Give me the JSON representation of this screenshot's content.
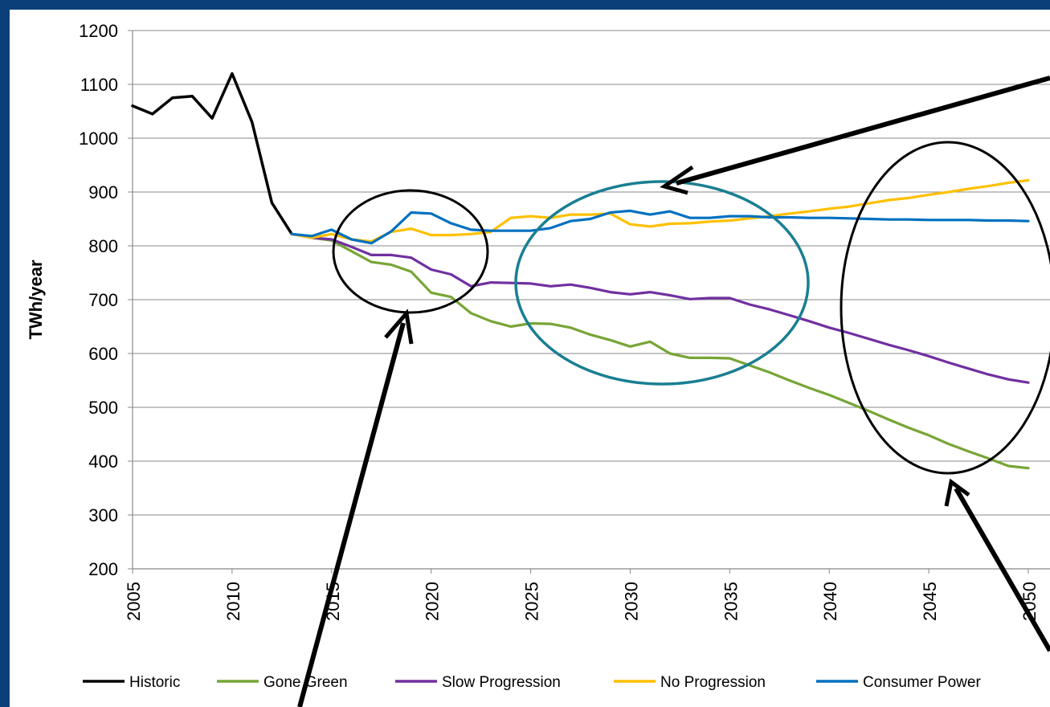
{
  "chart_data": {
    "type": "line",
    "title": "",
    "xlabel": "",
    "ylabel": "TWh/year",
    "ylim": [
      200,
      1200
    ],
    "yticks": [
      200,
      300,
      400,
      500,
      600,
      700,
      800,
      900,
      1000,
      1100,
      1200
    ],
    "xlim": [
      2005,
      2050
    ],
    "xticks": [
      2005,
      2010,
      2015,
      2020,
      2025,
      2030,
      2035,
      2040,
      2045,
      2050
    ],
    "grid": true,
    "legend_position": "bottom",
    "series": [
      {
        "name": "Historic",
        "color": "#000000",
        "x": [
          2005,
          2006,
          2007,
          2008,
          2009,
          2010,
          2011,
          2012,
          2013
        ],
        "values": [
          1060,
          1045,
          1075,
          1078,
          1037,
          1120,
          1030,
          880,
          822
        ]
      },
      {
        "name": "Gone Green",
        "color": "#77a536",
        "x": [
          2013,
          2014,
          2015,
          2016,
          2017,
          2018,
          2019,
          2020,
          2021,
          2022,
          2023,
          2024,
          2025,
          2026,
          2027,
          2028,
          2029,
          2030,
          2031,
          2032,
          2033,
          2034,
          2035,
          2036,
          2037,
          2038,
          2039,
          2040,
          2041,
          2042,
          2043,
          2044,
          2045,
          2046,
          2047,
          2048,
          2049,
          2050
        ],
        "values": [
          822,
          815,
          810,
          790,
          770,
          765,
          752,
          713,
          705,
          675,
          660,
          650,
          656,
          655,
          648,
          635,
          625,
          613,
          622,
          600,
          592,
          592,
          591,
          578,
          565,
          550,
          536,
          523,
          508,
          493,
          477,
          462,
          448,
          432,
          418,
          405,
          391,
          387
        ]
      },
      {
        "name": "Slow Progression",
        "color": "#7030a0",
        "x": [
          2013,
          2014,
          2015,
          2016,
          2017,
          2018,
          2019,
          2020,
          2021,
          2022,
          2023,
          2024,
          2025,
          2026,
          2027,
          2028,
          2029,
          2030,
          2031,
          2032,
          2033,
          2034,
          2035,
          2036,
          2037,
          2038,
          2039,
          2040,
          2041,
          2042,
          2043,
          2044,
          2045,
          2046,
          2047,
          2048,
          2049,
          2050
        ],
        "values": [
          822,
          815,
          812,
          798,
          783,
          783,
          778,
          756,
          747,
          725,
          732,
          731,
          730,
          725,
          728,
          722,
          714,
          710,
          714,
          708,
          701,
          703,
          703,
          691,
          682,
          671,
          660,
          648,
          638,
          627,
          616,
          606,
          595,
          583,
          572,
          561,
          552,
          546
        ]
      },
      {
        "name": "No Progression",
        "color": "#ffc000",
        "x": [
          2013,
          2014,
          2015,
          2016,
          2017,
          2018,
          2019,
          2020,
          2021,
          2022,
          2023,
          2024,
          2025,
          2026,
          2027,
          2028,
          2029,
          2030,
          2031,
          2032,
          2033,
          2034,
          2035,
          2036,
          2037,
          2038,
          2039,
          2040,
          2041,
          2042,
          2043,
          2044,
          2045,
          2046,
          2047,
          2048,
          2049,
          2050
        ],
        "values": [
          822,
          815,
          822,
          812,
          808,
          826,
          832,
          820,
          820,
          822,
          826,
          852,
          855,
          852,
          858,
          858,
          860,
          840,
          836,
          841,
          842,
          845,
          847,
          851,
          855,
          860,
          864,
          869,
          873,
          879,
          885,
          889,
          895,
          900,
          906,
          911,
          917,
          922
        ]
      },
      {
        "name": "Consumer Power",
        "color": "#0070c0",
        "x": [
          2013,
          2014,
          2015,
          2016,
          2017,
          2018,
          2019,
          2020,
          2021,
          2022,
          2023,
          2024,
          2025,
          2026,
          2027,
          2028,
          2029,
          2030,
          2031,
          2032,
          2033,
          2034,
          2035,
          2036,
          2037,
          2038,
          2039,
          2040,
          2041,
          2042,
          2043,
          2044,
          2045,
          2046,
          2047,
          2048,
          2049,
          2050
        ],
        "values": [
          822,
          818,
          830,
          812,
          805,
          827,
          862,
          860,
          842,
          830,
          828,
          828,
          828,
          833,
          846,
          850,
          862,
          865,
          858,
          864,
          852,
          852,
          855,
          855,
          853,
          853,
          852,
          852,
          851,
          850,
          849,
          849,
          848,
          848,
          848,
          847,
          847,
          846
        ]
      }
    ]
  }
}
